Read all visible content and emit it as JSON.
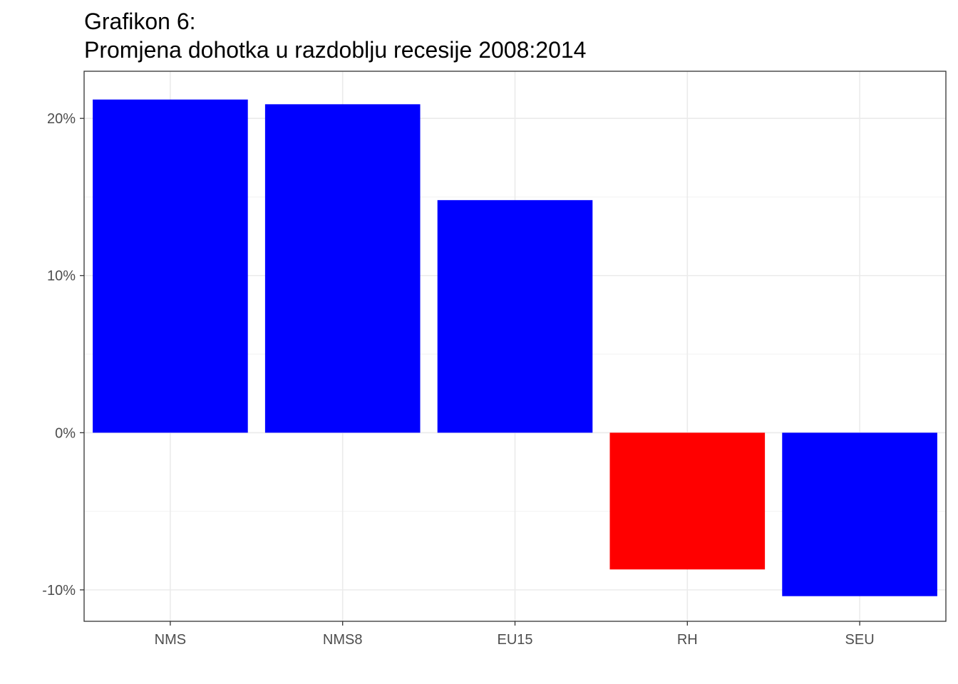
{
  "chart_data": {
    "type": "bar",
    "title": "Grafikon 6:",
    "subtitle": "Promjena dohotka u razdoblju recesije 2008:2014",
    "xlabel": "",
    "ylabel": "",
    "categories": [
      "NMS",
      "NMS8",
      "EU15",
      "RH",
      "SEU"
    ],
    "values": [
      21.2,
      20.9,
      14.8,
      -8.7,
      -10.4
    ],
    "colors": [
      "#0000FF",
      "#0000FF",
      "#0000FF",
      "#FF0000",
      "#0000FF"
    ],
    "ylim": [
      -12,
      23
    ],
    "yticks": [
      -10,
      0,
      10,
      20
    ],
    "ytick_labels": [
      "-10%",
      "0%",
      "10%",
      "20%"
    ],
    "grid": true,
    "legend": "none"
  }
}
